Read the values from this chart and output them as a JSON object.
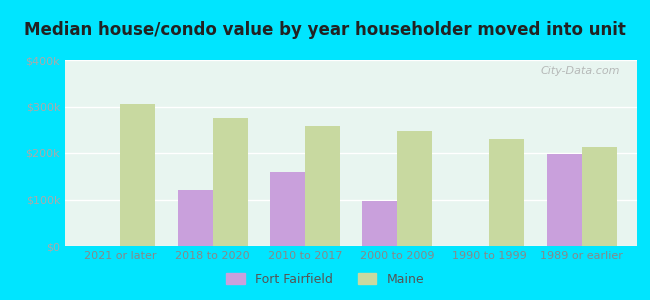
{
  "title": "Median house/condo value by year householder moved into unit",
  "categories": [
    "2021 or later",
    "2018 to 2020",
    "2010 to 2017",
    "2000 to 2009",
    "1990 to 1999",
    "1989 or earlier"
  ],
  "fort_fairfield": [
    null,
    120000,
    160000,
    97000,
    null,
    197000
  ],
  "maine": [
    305000,
    275000,
    257000,
    247000,
    230000,
    213000
  ],
  "fort_fairfield_color": "#c9a0dc",
  "maine_color": "#c8d9a0",
  "plot_bg_top": "#e8f5f0",
  "plot_bg_bottom": "#d8f0e8",
  "outer_background": "#00e5ff",
  "ylim": [
    0,
    400000
  ],
  "yticks": [
    0,
    100000,
    200000,
    300000,
    400000
  ],
  "ytick_labels": [
    "$0",
    "$100k",
    "$200k",
    "$300k",
    "$400k"
  ],
  "bar_width": 0.38,
  "watermark": "City-Data.com",
  "legend_labels": [
    "Fort Fairfield",
    "Maine"
  ],
  "title_fontsize": 12,
  "tick_fontsize": 8,
  "grid_color": "#ffffff",
  "ytick_color": "#aaaaaa",
  "xtick_color": "#888888"
}
